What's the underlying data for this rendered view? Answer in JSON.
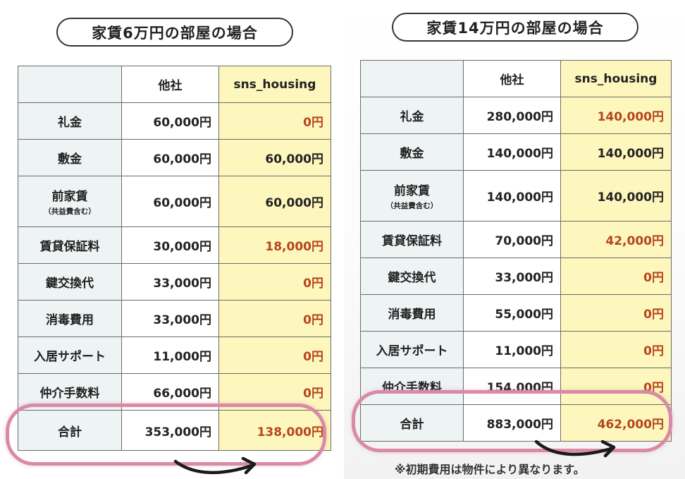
{
  "left": {
    "title": "家賃6万円の部屋の場合",
    "header": {
      "corner": "",
      "other": "他社",
      "sns": "sns_housing"
    },
    "rows": [
      {
        "label": "礼金",
        "sub": "",
        "other": "60,000円",
        "sns": "0円",
        "sns_red": true
      },
      {
        "label": "敷金",
        "sub": "",
        "other": "60,000円",
        "sns": "60,000円",
        "sns_red": false
      },
      {
        "label": "前家賃",
        "sub": "（共益費含む）",
        "other": "60,000円",
        "sns": "60,000円",
        "sns_red": false
      },
      {
        "label": "賃貸保証料",
        "sub": "",
        "other": "30,000円",
        "sns": "18,000円",
        "sns_red": true
      },
      {
        "label": "鍵交換代",
        "sub": "",
        "other": "33,000円",
        "sns": "0円",
        "sns_red": true
      },
      {
        "label": "消毒費用",
        "sub": "",
        "other": "33,000円",
        "sns": "0円",
        "sns_red": true
      },
      {
        "label": "入居サポート",
        "sub": "",
        "other": "11,000円",
        "sns": "0円",
        "sns_red": true
      },
      {
        "label": "仲介手数料",
        "sub": "",
        "other": "66,000円",
        "sns": "0円",
        "sns_red": true
      },
      {
        "label": "合計",
        "sub": "",
        "other": "353,000円",
        "sns": "138,000円",
        "sns_red": true
      }
    ]
  },
  "right": {
    "title": "家賃14万円の部屋の場合",
    "header": {
      "corner": "",
      "other": "他社",
      "sns": "sns_housing"
    },
    "rows": [
      {
        "label": "礼金",
        "sub": "",
        "other": "280,000円",
        "sns": "140,000円",
        "sns_red": true
      },
      {
        "label": "敷金",
        "sub": "",
        "other": "140,000円",
        "sns": "140,000円",
        "sns_red": false
      },
      {
        "label": "前家賃",
        "sub": "（共益費含む）",
        "other": "140,000円",
        "sns": "140,000円",
        "sns_red": false
      },
      {
        "label": "賃貸保証料",
        "sub": "",
        "other": "70,000円",
        "sns": "42,000円",
        "sns_red": true
      },
      {
        "label": "鍵交換代",
        "sub": "",
        "other": "33,000円",
        "sns": "0円",
        "sns_red": true
      },
      {
        "label": "消毒費用",
        "sub": "",
        "other": "55,000円",
        "sns": "0円",
        "sns_red": true
      },
      {
        "label": "入居サポート",
        "sub": "",
        "other": "11,000円",
        "sns": "0円",
        "sns_red": true
      },
      {
        "label": "仲介手数料",
        "sub": "",
        "other": "154,000円",
        "sns": "0円",
        "sns_red": true
      },
      {
        "label": "合計",
        "sub": "",
        "other": "883,000円",
        "sns": "462,000円",
        "sns_red": true
      }
    ]
  },
  "note": "※初期費用は物件により異なります。",
  "colors": {
    "label_bg": "#eef3f4",
    "sns_bg": "#fdf6bd",
    "sns_text_red": "#b5461e",
    "highlight": "#d98aa6"
  }
}
